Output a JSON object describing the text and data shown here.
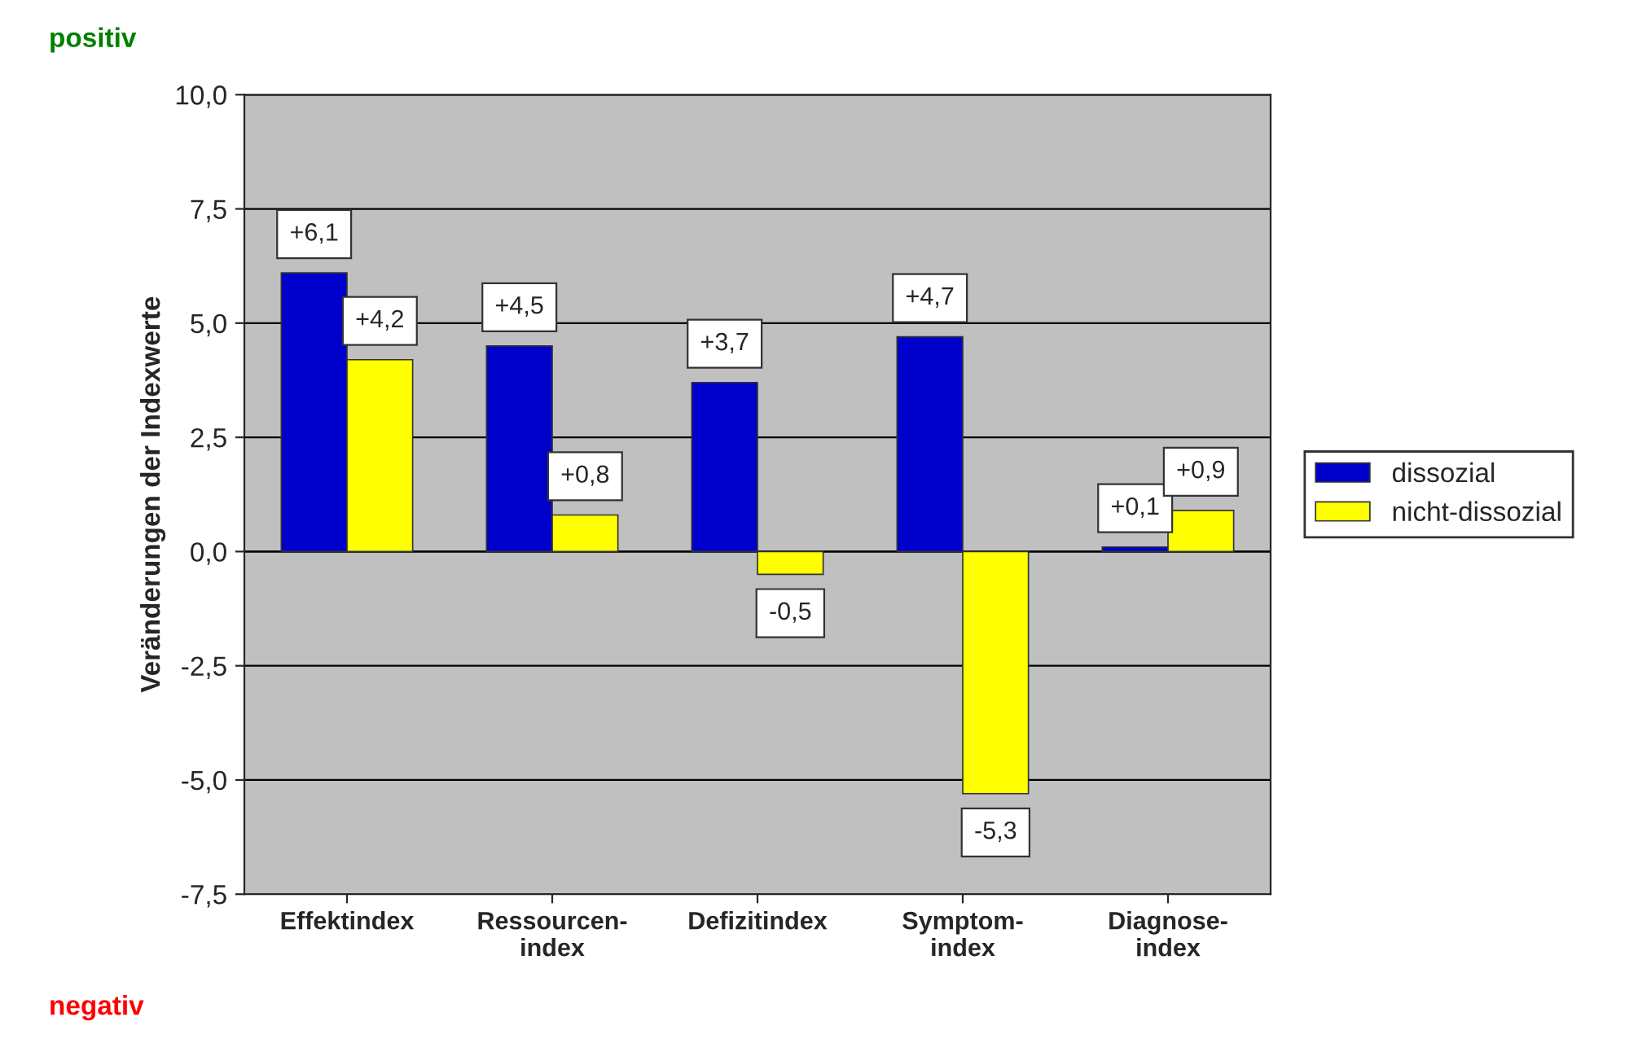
{
  "chart_data": {
    "type": "bar",
    "ylabel": "Veränderungen der Indexwerte",
    "categories": [
      "Effektindex",
      "Ressourcen-\nindex",
      "Defizitindex",
      "Symptom-\nindex",
      "Diagnose-\nindex"
    ],
    "series": [
      {
        "name": "dissozial",
        "color": "#0000cc",
        "values": [
          6.1,
          4.5,
          3.7,
          4.7,
          0.1
        ],
        "value_labels": [
          "+6,1",
          "+4,5",
          "+3,7",
          "+4,7",
          "+0,1"
        ]
      },
      {
        "name": "nicht-dissozial",
        "color": "#ffff00",
        "values": [
          4.2,
          0.8,
          -0.5,
          -5.3,
          0.9
        ],
        "value_labels": [
          "+4,2",
          "+0,8",
          "-0,5",
          "-5,3",
          "+0,9"
        ]
      }
    ],
    "ylim": [
      -7.5,
      10
    ],
    "yticks": [
      {
        "value": -7.5,
        "label": "-7,5"
      },
      {
        "value": -5,
        "label": "-5,0"
      },
      {
        "value": -2.5,
        "label": "-2,5"
      },
      {
        "value": 0,
        "label": "0,0"
      },
      {
        "value": 2.5,
        "label": "2,5"
      },
      {
        "value": 5,
        "label": "5,0"
      },
      {
        "value": 7.5,
        "label": "7,5"
      },
      {
        "value": 10,
        "label": "10,0"
      }
    ],
    "grid": "y",
    "legend": "right",
    "annotations": [
      "positiv",
      "negativ"
    ]
  }
}
